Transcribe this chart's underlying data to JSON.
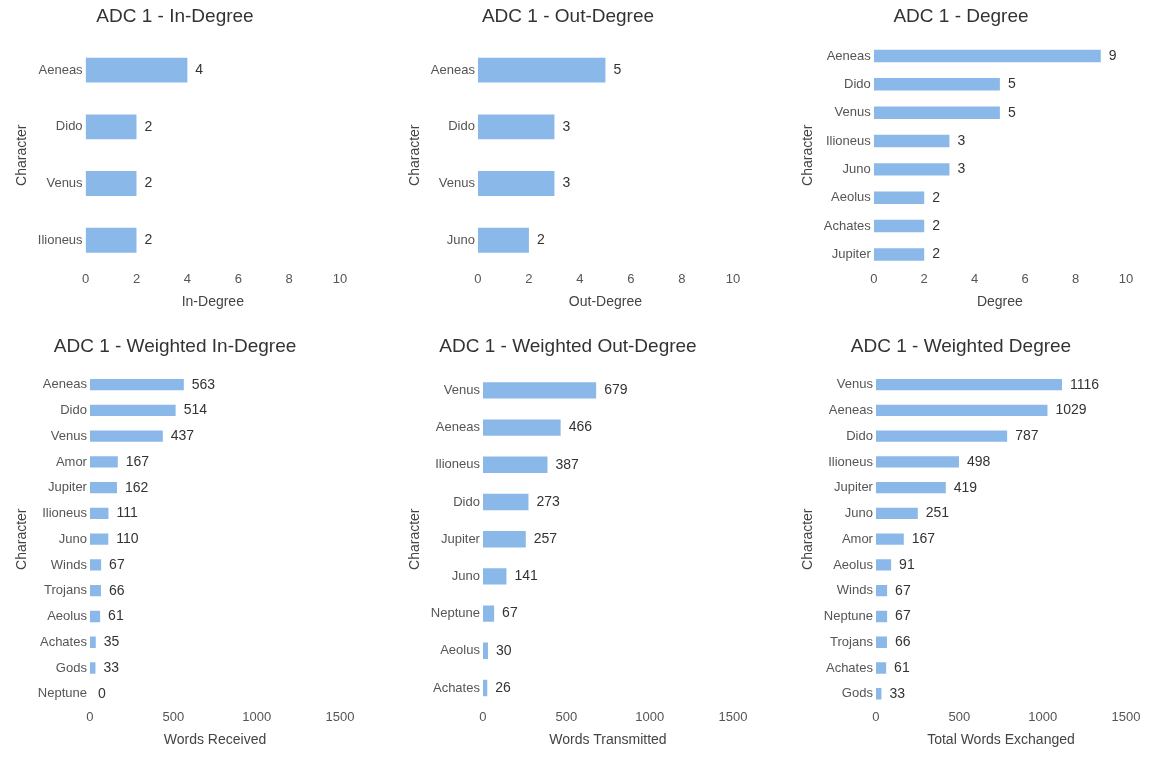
{
  "chart_data": [
    {
      "type": "bar",
      "orientation": "horizontal",
      "title": "ADC 1 - In-Degree",
      "xlabel": "In-Degree",
      "ylabel": "Character",
      "categories": [
        "Aeneas",
        "Dido",
        "Venus",
        "Ilioneus"
      ],
      "values": [
        4,
        2,
        2,
        2
      ],
      "color": "#8ab8e8",
      "xlim": [
        0,
        10
      ],
      "xticks": [
        0,
        2,
        4,
        6,
        8,
        10
      ],
      "data_labels": true
    },
    {
      "type": "bar",
      "orientation": "horizontal",
      "title": "ADC 1 - Out-Degree",
      "xlabel": "Out-Degree",
      "ylabel": "Character",
      "categories": [
        "Aeneas",
        "Dido",
        "Venus",
        "Juno"
      ],
      "values": [
        5,
        3,
        3,
        2
      ],
      "color": "#8ab8e8",
      "xlim": [
        0,
        10
      ],
      "xticks": [
        0,
        2,
        4,
        6,
        8,
        10
      ],
      "data_labels": true
    },
    {
      "type": "bar",
      "orientation": "horizontal",
      "title": "ADC 1 - Degree",
      "xlabel": "Degree",
      "ylabel": "Character",
      "categories": [
        "Aeneas",
        "Dido",
        "Venus",
        "Ilioneus",
        "Juno",
        "Aeolus",
        "Achates",
        "Jupiter"
      ],
      "values": [
        9,
        5,
        5,
        3,
        3,
        2,
        2,
        2
      ],
      "color": "#8ab8e8",
      "xlim": [
        0,
        10
      ],
      "xticks": [
        0,
        2,
        4,
        6,
        8,
        10
      ],
      "data_labels": true
    },
    {
      "type": "bar",
      "orientation": "horizontal",
      "title": "ADC 1 - Weighted In-Degree",
      "xlabel": "Words Received",
      "ylabel": "Character",
      "categories": [
        "Aeneas",
        "Dido",
        "Venus",
        "Amor",
        "Jupiter",
        "Ilioneus",
        "Juno",
        "Winds",
        "Trojans",
        "Aeolus",
        "Achates",
        "Gods",
        "Neptune"
      ],
      "values": [
        563,
        514,
        437,
        167,
        162,
        111,
        110,
        67,
        66,
        61,
        35,
        33,
        0
      ],
      "color": "#8ab8e8",
      "xlim": [
        0,
        1500
      ],
      "xticks": [
        0,
        500,
        1000,
        1500
      ],
      "data_labels": true
    },
    {
      "type": "bar",
      "orientation": "horizontal",
      "title": "ADC 1 - Weighted Out-Degree",
      "xlabel": "Words Transmitted",
      "ylabel": "Character",
      "categories": [
        "Venus",
        "Aeneas",
        "Ilioneus",
        "Dido",
        "Jupiter",
        "Juno",
        "Neptune",
        "Aeolus",
        "Achates"
      ],
      "values": [
        679,
        466,
        387,
        273,
        257,
        141,
        67,
        30,
        26
      ],
      "color": "#8ab8e8",
      "xlim": [
        0,
        1500
      ],
      "xticks": [
        0,
        500,
        1000,
        1500
      ],
      "data_labels": true
    },
    {
      "type": "bar",
      "orientation": "horizontal",
      "title": "ADC 1 - Weighted Degree",
      "xlabel": "Total Words Exchanged",
      "ylabel": "Character",
      "categories": [
        "Venus",
        "Aeneas",
        "Dido",
        "Ilioneus",
        "Jupiter",
        "Juno",
        "Amor",
        "Aeolus",
        "Winds",
        "Neptune",
        "Trojans",
        "Achates",
        "Gods"
      ],
      "values": [
        1116,
        1029,
        787,
        498,
        419,
        251,
        167,
        91,
        67,
        67,
        66,
        61,
        33
      ],
      "color": "#8ab8e8",
      "xlim": [
        0,
        1500
      ],
      "xticks": [
        0,
        500,
        1000,
        1500
      ],
      "data_labels": true
    }
  ]
}
